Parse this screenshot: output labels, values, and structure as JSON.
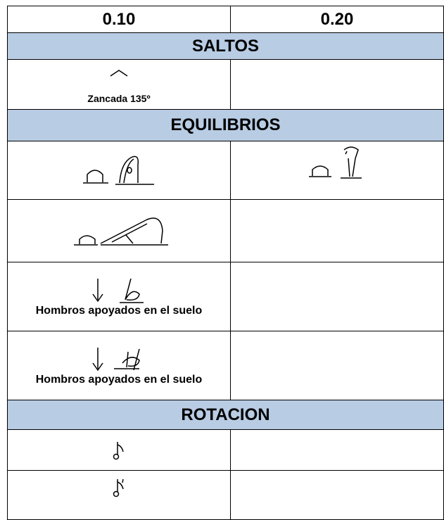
{
  "header": {
    "columns": [
      "0.10",
      "0.20"
    ]
  },
  "sections": [
    {
      "title": "SALTOS",
      "captions": [
        "Zancada 135º"
      ]
    },
    {
      "title": "EQUILIBRIOS",
      "captions": [
        "Hombros apoyados en el suelo",
        "Hombros apoyados en el suelo"
      ]
    },
    {
      "title": "ROTACION"
    }
  ]
}
